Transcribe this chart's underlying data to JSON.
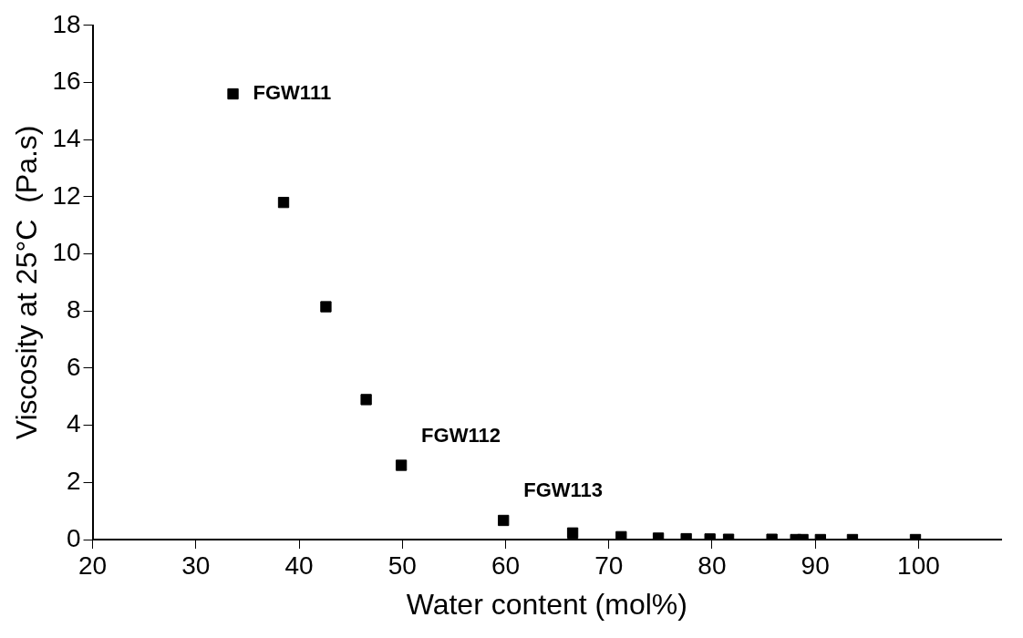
{
  "chart_data": {
    "type": "scatter",
    "xlabel": "Water content (mol%)",
    "ylabel": "Viscosity at 25°C  (Pa.s)",
    "x": [
      33.6,
      38.5,
      42.6,
      46.5,
      49.9,
      59.8,
      66.5,
      71.2,
      74.8,
      77.5,
      79.8,
      81.6,
      85.8,
      88.1,
      88.8,
      90.5,
      93.6,
      99.7
    ],
    "series": [
      {
        "color": "#000000",
        "values": [
          15.6,
          11.8,
          8.15,
          4.9,
          2.6,
          0.67,
          0.23,
          0.1,
          0.05,
          0.03,
          0.02,
          0.01,
          0.01,
          0,
          0,
          0,
          0,
          0
        ]
      }
    ],
    "xlim": [
      20,
      108
    ],
    "xticks": [
      20,
      30,
      40,
      50,
      60,
      70,
      80,
      90,
      100
    ],
    "ylim": [
      0,
      18
    ],
    "yticks": [
      0,
      2,
      4,
      6,
      8,
      10,
      12,
      14,
      16,
      18
    ],
    "grid": false,
    "legend": false,
    "marker": "square",
    "annotations": [
      {
        "text": "FGW111",
        "x": 33.6,
        "y": 15.6
      },
      {
        "text": "FGW112",
        "x": 49.9,
        "y": 2.6
      },
      {
        "text": "FGW113",
        "x": 59.8,
        "y": 0.67
      }
    ]
  }
}
